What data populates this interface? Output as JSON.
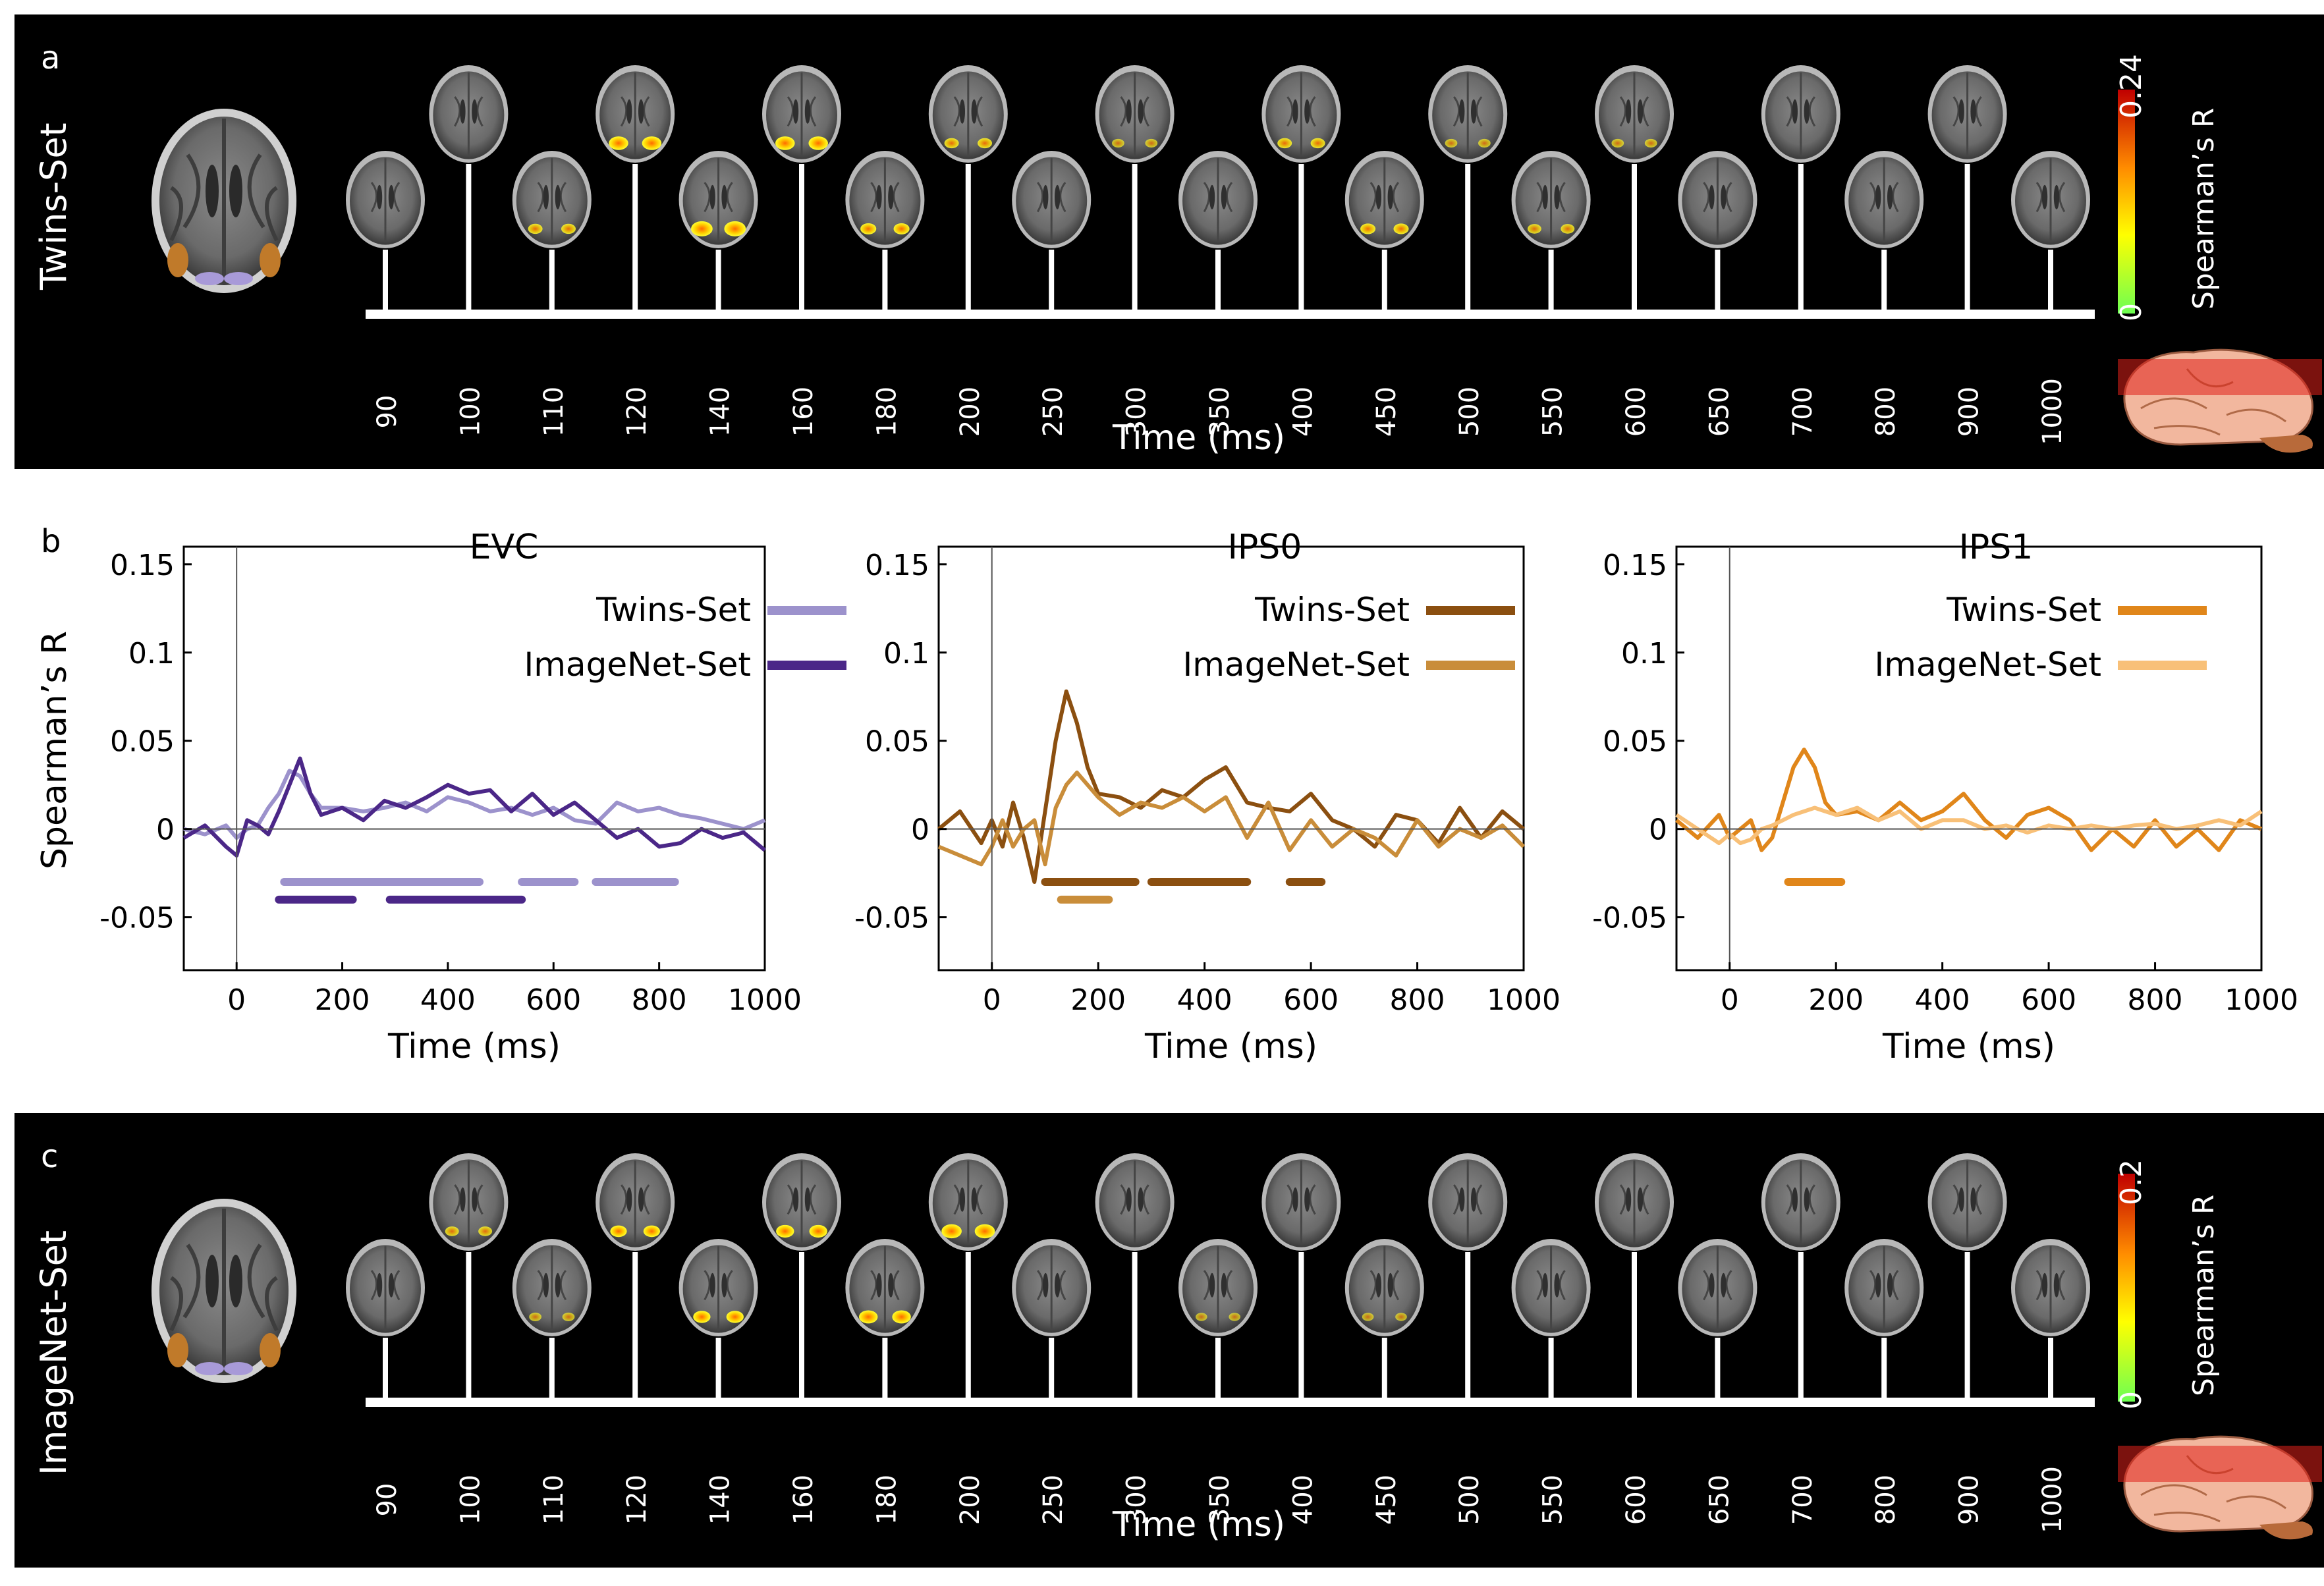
{
  "panel_a": {
    "label": "a",
    "side_label": "Twins-Set",
    "timepoints": [
      "90",
      "100",
      "110",
      "120",
      "140",
      "160",
      "180",
      "200",
      "250",
      "300",
      "350",
      "400",
      "450",
      "500",
      "550",
      "600",
      "650",
      "700",
      "800",
      "900",
      "1000"
    ],
    "blob_strength": [
      0,
      0,
      0.35,
      0.7,
      0.85,
      0.7,
      0.45,
      0.35,
      0,
      0.2,
      0,
      0.35,
      0.4,
      0.2,
      0.3,
      0.2,
      0,
      0,
      0,
      0,
      0
    ],
    "xlabel": "Time (ms)",
    "colorbar": {
      "max": "0.24",
      "min": "0",
      "label": "Spearman’s R"
    }
  },
  "panel_c": {
    "label": "c",
    "side_label": "ImageNet-Set",
    "timepoints": [
      "90",
      "100",
      "110",
      "120",
      "140",
      "160",
      "180",
      "200",
      "250",
      "300",
      "350",
      "400",
      "450",
      "500",
      "550",
      "600",
      "650",
      "700",
      "800",
      "900",
      "1000"
    ],
    "blob_strength": [
      0,
      0.3,
      0.2,
      0.5,
      0.55,
      0.6,
      0.65,
      0.75,
      0,
      0,
      0.15,
      0,
      0.15,
      0,
      0,
      0,
      0,
      0,
      0,
      0,
      0
    ],
    "xlabel": "Time (ms)",
    "colorbar": {
      "max": "0.2",
      "min": "0",
      "label": "Spearman’s R"
    }
  },
  "panel_b": {
    "label": "b",
    "ylabel": "Spearman’s R"
  },
  "colors": {
    "evc_twins": "#9c92cc",
    "evc_imagenet": "#4b2788",
    "ips0_twins": "#8b4f10",
    "ips0_imagenet": "#c98d3a",
    "ips1_twins": "#e0861a",
    "ips1_imagenet": "#f8c078"
  },
  "chart_data": [
    {
      "type": "line",
      "title": "EVC",
      "xlabel": "Time (ms)",
      "ylabel": "Spearman’s R",
      "xlim": [
        -100,
        1000
      ],
      "ylim": [
        -0.08,
        0.16
      ],
      "xticks": [
        "0",
        "200",
        "400",
        "600",
        "800",
        "1000"
      ],
      "yticks": [
        "-0.05",
        "0",
        "0.05",
        "0.1",
        "0.15"
      ],
      "series": [
        {
          "name": "Twins-Set",
          "color": "#9c92cc",
          "x": [
            -100,
            -60,
            -20,
            0,
            20,
            40,
            60,
            80,
            100,
            120,
            140,
            160,
            200,
            240,
            280,
            320,
            360,
            400,
            440,
            480,
            520,
            560,
            600,
            640,
            680,
            720,
            760,
            800,
            840,
            880,
            920,
            960,
            1000
          ],
          "y": [
            0.0,
            -0.003,
            0.002,
            -0.005,
            0.0,
            0.002,
            0.012,
            0.02,
            0.033,
            0.03,
            0.02,
            0.012,
            0.012,
            0.01,
            0.012,
            0.015,
            0.01,
            0.018,
            0.015,
            0.01,
            0.012,
            0.008,
            0.012,
            0.005,
            0.003,
            0.015,
            0.01,
            0.012,
            0.008,
            0.006,
            0.003,
            0.0,
            0.005
          ]
        },
        {
          "name": "ImageNet-Set",
          "color": "#4b2788",
          "x": [
            -100,
            -60,
            -20,
            0,
            20,
            40,
            60,
            80,
            100,
            120,
            140,
            160,
            200,
            240,
            280,
            320,
            360,
            400,
            440,
            480,
            520,
            560,
            600,
            640,
            680,
            720,
            760,
            800,
            840,
            880,
            920,
            960,
            1000
          ],
          "y": [
            -0.005,
            0.002,
            -0.01,
            -0.015,
            0.005,
            0.002,
            -0.003,
            0.01,
            0.025,
            0.04,
            0.02,
            0.008,
            0.012,
            0.005,
            0.016,
            0.012,
            0.018,
            0.025,
            0.02,
            0.022,
            0.01,
            0.02,
            0.008,
            0.015,
            0.005,
            -0.005,
            0.0,
            -0.01,
            -0.008,
            0.0,
            -0.005,
            -0.002,
            -0.012
          ]
        }
      ],
      "significance": [
        {
          "series": "Twins-Set",
          "intervals": [
            [
              90,
              460
            ],
            [
              540,
              640
            ],
            [
              680,
              830
            ]
          ]
        },
        {
          "series": "ImageNet-Set",
          "intervals": [
            [
              80,
              220
            ],
            [
              290,
              540
            ]
          ]
        }
      ]
    },
    {
      "type": "line",
      "title": "IPS0",
      "xlabel": "Time (ms)",
      "ylabel": "Spearman’s R",
      "xlim": [
        -100,
        1000
      ],
      "ylim": [
        -0.08,
        0.16
      ],
      "xticks": [
        "0",
        "200",
        "400",
        "600",
        "800",
        "1000"
      ],
      "yticks": [
        "-0.05",
        "0",
        "0.05",
        "0.1",
        "0.15"
      ],
      "series": [
        {
          "name": "Twins-Set",
          "color": "#8b4f10",
          "x": [
            -100,
            -60,
            -20,
            0,
            20,
            40,
            60,
            80,
            100,
            120,
            140,
            160,
            180,
            200,
            240,
            280,
            320,
            360,
            400,
            440,
            480,
            520,
            560,
            600,
            640,
            680,
            720,
            760,
            800,
            840,
            880,
            920,
            960,
            1000
          ],
          "y": [
            0.0,
            0.01,
            -0.008,
            0.005,
            -0.01,
            0.015,
            -0.005,
            -0.03,
            0.01,
            0.05,
            0.078,
            0.06,
            0.035,
            0.02,
            0.018,
            0.012,
            0.022,
            0.018,
            0.028,
            0.035,
            0.015,
            0.012,
            0.01,
            0.02,
            0.005,
            0.0,
            -0.01,
            0.008,
            0.005,
            -0.008,
            0.012,
            -0.005,
            0.01,
            0.0
          ]
        },
        {
          "name": "ImageNet-Set",
          "color": "#c98d3a",
          "x": [
            -100,
            -60,
            -20,
            0,
            20,
            40,
            60,
            80,
            100,
            120,
            140,
            160,
            180,
            200,
            240,
            280,
            320,
            360,
            400,
            440,
            480,
            520,
            560,
            600,
            640,
            680,
            720,
            760,
            800,
            840,
            880,
            920,
            960,
            1000
          ],
          "y": [
            -0.01,
            -0.015,
            -0.02,
            -0.01,
            0.005,
            -0.01,
            0.0,
            0.005,
            -0.02,
            0.012,
            0.025,
            0.032,
            0.025,
            0.018,
            0.008,
            0.015,
            0.012,
            0.018,
            0.01,
            0.018,
            -0.005,
            0.015,
            -0.012,
            0.005,
            -0.01,
            0.0,
            -0.005,
            -0.015,
            0.005,
            -0.01,
            0.0,
            -0.005,
            0.002,
            -0.01
          ]
        }
      ],
      "significance": [
        {
          "series": "Twins-Set",
          "intervals": [
            [
              100,
              270
            ],
            [
              300,
              480
            ],
            [
              560,
              620
            ]
          ]
        },
        {
          "series": "ImageNet-Set",
          "intervals": [
            [
              130,
              220
            ]
          ]
        }
      ]
    },
    {
      "type": "line",
      "title": "IPS1",
      "xlabel": "Time (ms)",
      "ylabel": "Spearman’s R",
      "xlim": [
        -100,
        1000
      ],
      "ylim": [
        -0.08,
        0.16
      ],
      "xticks": [
        "0",
        "200",
        "400",
        "600",
        "800",
        "1000"
      ],
      "yticks": [
        "-0.05",
        "0",
        "0.05",
        "0.1",
        "0.15"
      ],
      "series": [
        {
          "name": "Twins-Set",
          "color": "#e0861a",
          "x": [
            -100,
            -60,
            -20,
            0,
            20,
            40,
            60,
            80,
            100,
            120,
            140,
            160,
            180,
            200,
            240,
            280,
            320,
            360,
            400,
            440,
            480,
            520,
            560,
            600,
            640,
            680,
            720,
            760,
            800,
            840,
            880,
            920,
            960,
            1000
          ],
          "y": [
            0.005,
            -0.005,
            0.008,
            -0.005,
            0.0,
            0.005,
            -0.012,
            -0.005,
            0.015,
            0.035,
            0.045,
            0.035,
            0.015,
            0.008,
            0.01,
            0.005,
            0.015,
            0.005,
            0.01,
            0.02,
            0.005,
            -0.005,
            0.008,
            0.012,
            0.005,
            -0.012,
            0.0,
            -0.01,
            0.005,
            -0.01,
            0.0,
            -0.012,
            0.005,
            0.0
          ]
        },
        {
          "name": "ImageNet-Set",
          "color": "#f8c078",
          "x": [
            -100,
            -60,
            -20,
            0,
            20,
            40,
            60,
            80,
            100,
            120,
            140,
            160,
            180,
            200,
            240,
            280,
            320,
            360,
            400,
            440,
            480,
            520,
            560,
            600,
            640,
            680,
            720,
            760,
            800,
            840,
            880,
            920,
            960,
            1000
          ],
          "y": [
            0.008,
            0.0,
            -0.008,
            -0.003,
            -0.008,
            -0.006,
            0.0,
            0.002,
            0.005,
            0.008,
            0.01,
            0.012,
            0.01,
            0.008,
            0.012,
            0.005,
            0.01,
            0.0,
            0.005,
            0.005,
            0.0,
            0.002,
            -0.002,
            0.002,
            0.0,
            0.002,
            0.0,
            0.002,
            0.003,
            0.0,
            0.002,
            0.005,
            0.002,
            0.01
          ]
        }
      ],
      "significance": [
        {
          "series": "Twins-Set",
          "intervals": [
            [
              110,
              210
            ]
          ]
        }
      ]
    }
  ]
}
